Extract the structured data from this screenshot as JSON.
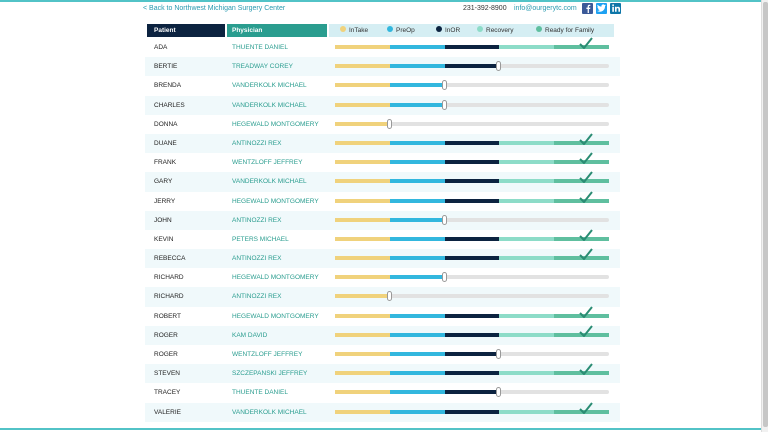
{
  "header": {
    "back_link": "< Back to Northwest Michigan Surgery Center",
    "phone": "231-392-8900",
    "email": "info@ourgerytc.com",
    "social": [
      {
        "name": "facebook-icon",
        "glyph": "f"
      },
      {
        "name": "twitter-icon",
        "glyph": ""
      },
      {
        "name": "linkedin-icon",
        "glyph": "in"
      }
    ]
  },
  "table": {
    "col_patient": "Patient",
    "col_physician": "Physician",
    "legend": [
      {
        "label": "InTake",
        "color": "#f0d27c"
      },
      {
        "label": "PreOp",
        "color": "#32b7de"
      },
      {
        "label": "InOR",
        "color": "#0c2340"
      },
      {
        "label": "Recovery",
        "color": "#8ddcc8"
      },
      {
        "label": "Ready for Family",
        "color": "#5fbf9f"
      }
    ],
    "stage_colors": [
      "#f0d27c",
      "#32b7de",
      "#0c2340",
      "#8ddcc8",
      "#5fbf9f"
    ],
    "rows": [
      {
        "patient": "ADA",
        "physician": "THUENTE DANIEL",
        "stage": 5
      },
      {
        "patient": "BERTIE",
        "physician": "TREADWAY COREY",
        "stage": 3
      },
      {
        "patient": "BRENDA",
        "physician": "VANDERKOLK MICHAEL",
        "stage": 2
      },
      {
        "patient": "CHARLES",
        "physician": "VANDERKOLK MICHAEL",
        "stage": 2
      },
      {
        "patient": "DONNA",
        "physician": "HEGEWALD MONTGOMERY",
        "stage": 1
      },
      {
        "patient": "DUANE",
        "physician": "ANTINOZZI REX",
        "stage": 5
      },
      {
        "patient": "FRANK",
        "physician": "WENTZLOFF JEFFREY",
        "stage": 5
      },
      {
        "patient": "GARY",
        "physician": "VANDERKOLK MICHAEL",
        "stage": 5
      },
      {
        "patient": "JERRY",
        "physician": "HEGEWALD MONTGOMERY",
        "stage": 5
      },
      {
        "patient": "JOHN",
        "physician": "ANTINOZZI REX",
        "stage": 2
      },
      {
        "patient": "KEVIN",
        "physician": "PETERS MICHAEL",
        "stage": 5
      },
      {
        "patient": "REBECCA",
        "physician": "ANTINOZZI REX",
        "stage": 5
      },
      {
        "patient": "RICHARD",
        "physician": "HEGEWALD MONTGOMERY",
        "stage": 2
      },
      {
        "patient": "RICHARD",
        "physician": "ANTINOZZI REX",
        "stage": 1
      },
      {
        "patient": "ROBERT",
        "physician": "HEGEWALD MONTGOMERY",
        "stage": 5
      },
      {
        "patient": "ROGER",
        "physician": "KAM DAVID",
        "stage": 5
      },
      {
        "patient": "ROGER",
        "physician": "WENTZLOFF JEFFREY",
        "stage": 3
      },
      {
        "patient": "STEVEN",
        "physician": "SZCZEPANSKI JEFFREY",
        "stage": 5
      },
      {
        "patient": "TRACEY",
        "physician": "THUENTE DANIEL",
        "stage": 3
      },
      {
        "patient": "VALERIE",
        "physician": "VANDERKOLK MICHAEL",
        "stage": 5
      }
    ]
  }
}
